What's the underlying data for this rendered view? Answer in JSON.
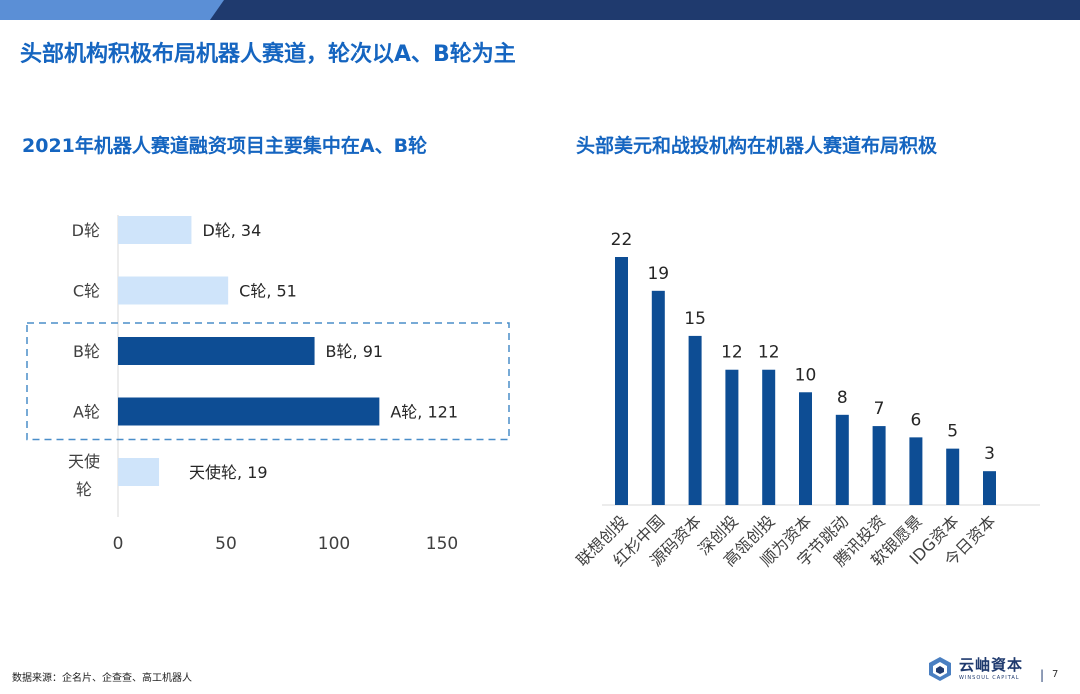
{
  "slide": {
    "title": "头部机构积极布局机器人赛道，轮次以A、B轮为主",
    "source": "数据来源：企名片、企查查、高工机器人",
    "page_number": "7",
    "page_separator": "|",
    "logo": {
      "cn": "云岫資本",
      "en": "WINSOUL CAPITAL",
      "icon": "winsoul-logo-icon"
    },
    "colors": {
      "dark_blue": "#0d4d94",
      "light_blue": "#cfe4fa",
      "title_blue": "#1565c0",
      "highlight_dash": "#4a8ec9"
    }
  },
  "chart_data": [
    {
      "type": "bar",
      "orientation": "horizontal",
      "title": "2021年机器人赛道融资项目主要集中在A、B轮",
      "categories": [
        "D轮",
        "C轮",
        "B轮",
        "A轮",
        "天使轮"
      ],
      "values": [
        34,
        51,
        91,
        121,
        19
      ],
      "data_labels": [
        "D轮, 34",
        "C轮, 51",
        "B轮, 91",
        "A轮, 121",
        "天使轮, 19"
      ],
      "highlighted": [
        "B轮",
        "A轮"
      ],
      "xlim": [
        0,
        150
      ],
      "xticks": [
        "0",
        "50",
        "100",
        "150"
      ],
      "xlabel": "",
      "ylabel": ""
    },
    {
      "type": "bar",
      "orientation": "vertical",
      "title": "头部美元和战投机构在机器人赛道布局积极",
      "categories": [
        "联想创投",
        "红杉中国",
        "源码资本",
        "深创投",
        "高瓴创投",
        "顺为资本",
        "字节跳动",
        "腾讯投资",
        "软银愿景",
        "IDG资本",
        "今日资本"
      ],
      "values": [
        22,
        19,
        15,
        12,
        12,
        10,
        8,
        7,
        6,
        5,
        3
      ],
      "ylim": [
        0,
        22
      ],
      "xlabel": "",
      "ylabel": ""
    }
  ]
}
